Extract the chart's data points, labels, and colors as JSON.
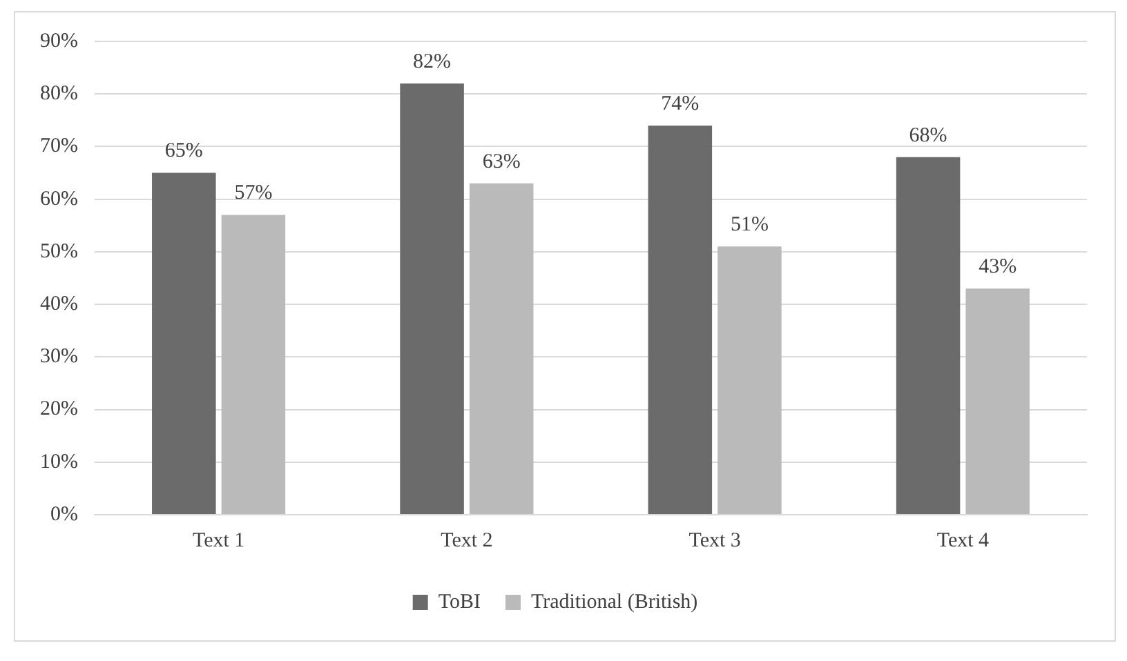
{
  "chart_data": {
    "type": "bar",
    "categories": [
      "Text 1",
      "Text 2",
      "Text 3",
      "Text 4"
    ],
    "series": [
      {
        "name": "ToBI",
        "color": "#6b6b6b",
        "values": [
          65,
          82,
          74,
          68
        ],
        "value_labels": [
          "65%",
          "82%",
          "74%",
          "68%"
        ]
      },
      {
        "name": "Traditional (British)",
        "color": "#bababa",
        "values": [
          57,
          63,
          51,
          43
        ],
        "value_labels": [
          "57%",
          "63%",
          "51%",
          "43%"
        ]
      }
    ],
    "ylim": [
      0,
      90
    ],
    "yticks": [
      {
        "value": 0,
        "label": "0%"
      },
      {
        "value": 10,
        "label": "10%"
      },
      {
        "value": 20,
        "label": "20%"
      },
      {
        "value": 30,
        "label": "30%"
      },
      {
        "value": 40,
        "label": "40%"
      },
      {
        "value": 50,
        "label": "50%"
      },
      {
        "value": 60,
        "label": "60%"
      },
      {
        "value": 70,
        "label": "70%"
      },
      {
        "value": 80,
        "label": "80%"
      },
      {
        "value": 90,
        "label": "90%"
      }
    ],
    "grid": "y",
    "legend": "bottom"
  }
}
